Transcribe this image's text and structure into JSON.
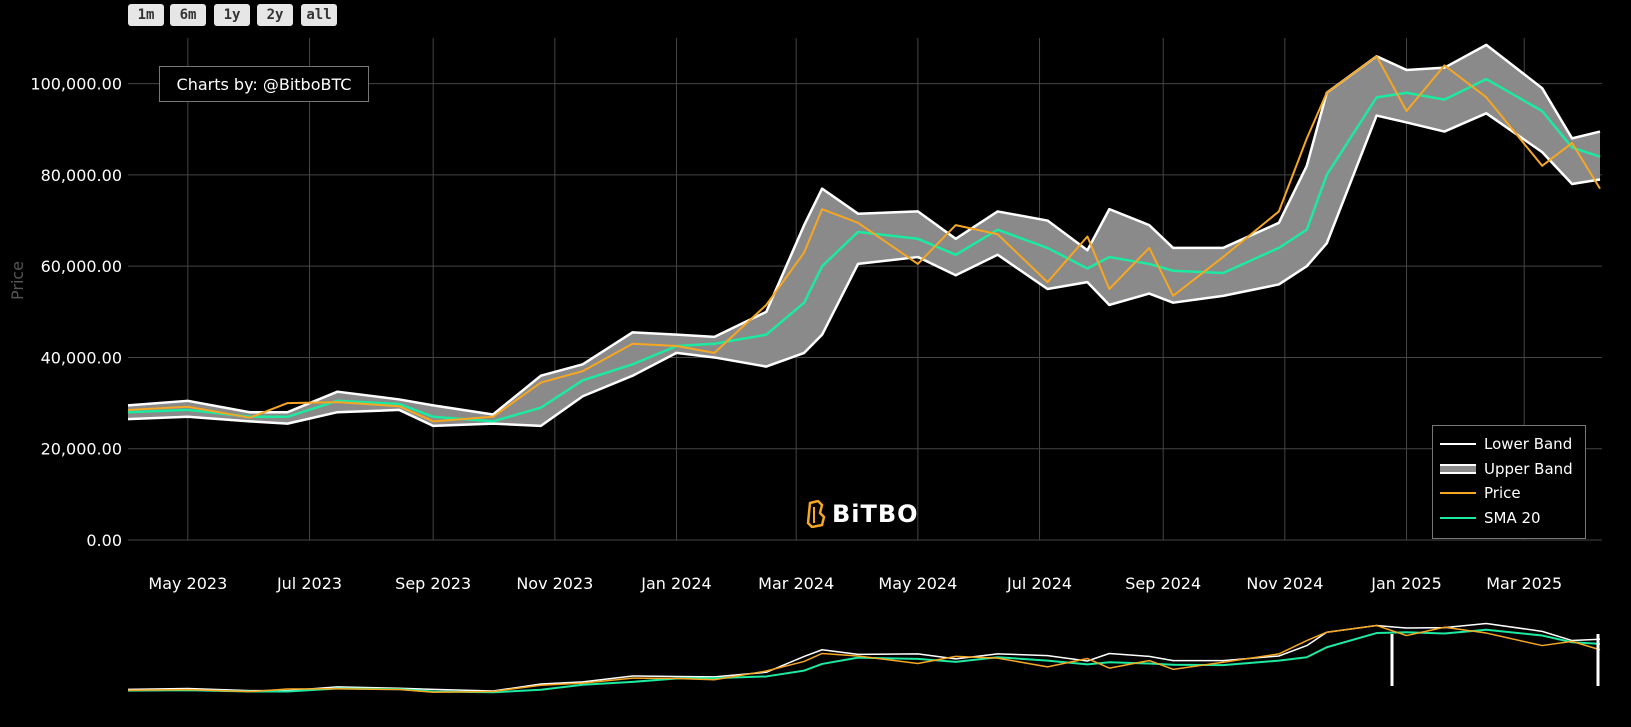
{
  "range_buttons": [
    "1m",
    "6m",
    "1y",
    "2y",
    "all"
  ],
  "credit": "Charts by: @BitboBTC",
  "watermark": "BiTBO",
  "colors": {
    "background": "#000000",
    "band_fill": "#8a8a8a",
    "band_line": "#ffffff",
    "price": "#f5a623",
    "sma": "#1de9a0",
    "grid": "#444444"
  },
  "legend": [
    {
      "label": "Lower Band",
      "color": "#ffffff",
      "style": "line"
    },
    {
      "label": "Upper Band",
      "color": "#8a8a8a",
      "style": "fill"
    },
    {
      "label": "Price",
      "color": "#f5a623",
      "style": "line"
    },
    {
      "label": "SMA 20",
      "color": "#1de9a0",
      "style": "line"
    }
  ],
  "chart_data": {
    "type": "line",
    "ylabel": "Price",
    "ylim": [
      0,
      110000
    ],
    "xlim": [
      "2023-04-01",
      "2025-04-09"
    ],
    "y_ticks": [
      "0.00",
      "20,000.00",
      "40,000.00",
      "60,000.00",
      "80,000.00",
      "100,000.00"
    ],
    "x_ticks": [
      "May 2023",
      "Jul 2023",
      "Sep 2023",
      "Nov 2023",
      "Jan 2024",
      "Mar 2024",
      "May 2024",
      "Jul 2024",
      "Sep 2024",
      "Nov 2024",
      "Jan 2025",
      "Mar 2025"
    ],
    "grid": true,
    "legend_position": "bottom-right",
    "series": [
      {
        "name": "Price",
        "x": [
          "2023-04-01",
          "2023-05-01",
          "2023-06-01",
          "2023-06-20",
          "2023-07-15",
          "2023-08-15",
          "2023-09-01",
          "2023-10-01",
          "2023-10-25",
          "2023-11-15",
          "2023-12-10",
          "2024-01-01",
          "2024-01-20",
          "2024-02-15",
          "2024-03-05",
          "2024-03-14",
          "2024-04-01",
          "2024-05-01",
          "2024-05-20",
          "2024-06-10",
          "2024-07-05",
          "2024-07-25",
          "2024-08-05",
          "2024-08-25",
          "2024-09-06",
          "2024-10-01",
          "2024-10-29",
          "2024-11-12",
          "2024-11-22",
          "2024-12-17",
          "2025-01-01",
          "2025-01-20",
          "2025-02-10",
          "2025-03-10",
          "2025-03-25",
          "2025-04-08"
        ],
        "values": [
          28500,
          29200,
          26800,
          30000,
          30200,
          29300,
          26000,
          27000,
          34500,
          37000,
          43000,
          42500,
          41000,
          51500,
          63000,
          72500,
          69500,
          60500,
          69000,
          67000,
          56500,
          66500,
          55000,
          64000,
          53500,
          62000,
          72000,
          88000,
          98000,
          106000,
          94000,
          104000,
          97000,
          82000,
          87000,
          77000
        ]
      },
      {
        "name": "SMA 20",
        "x": [
          "2023-04-01",
          "2023-05-01",
          "2023-06-01",
          "2023-06-20",
          "2023-07-15",
          "2023-08-15",
          "2023-09-01",
          "2023-10-01",
          "2023-10-25",
          "2023-11-15",
          "2023-12-10",
          "2024-01-01",
          "2024-01-20",
          "2024-02-15",
          "2024-03-05",
          "2024-03-14",
          "2024-04-01",
          "2024-05-01",
          "2024-05-20",
          "2024-06-10",
          "2024-07-05",
          "2024-07-25",
          "2024-08-05",
          "2024-08-25",
          "2024-09-06",
          "2024-10-01",
          "2024-10-29",
          "2024-11-12",
          "2024-11-22",
          "2024-12-17",
          "2025-01-01",
          "2025-01-20",
          "2025-02-10",
          "2025-03-10",
          "2025-03-25",
          "2025-04-08"
        ],
        "values": [
          28000,
          28500,
          27000,
          27000,
          30500,
          29800,
          27000,
          26000,
          29000,
          35000,
          38500,
          42500,
          43000,
          45000,
          52000,
          60000,
          67500,
          66000,
          62500,
          68000,
          64000,
          59500,
          62000,
          60500,
          59000,
          58500,
          64000,
          68000,
          80000,
          97000,
          98000,
          96500,
          101000,
          94000,
          86000,
          84000
        ]
      },
      {
        "name": "Upper Band",
        "x": [
          "2023-04-01",
          "2023-05-01",
          "2023-06-01",
          "2023-06-20",
          "2023-07-15",
          "2023-08-15",
          "2023-09-01",
          "2023-10-01",
          "2023-10-25",
          "2023-11-15",
          "2023-12-10",
          "2024-01-01",
          "2024-01-20",
          "2024-02-15",
          "2024-03-05",
          "2024-03-14",
          "2024-04-01",
          "2024-05-01",
          "2024-05-20",
          "2024-06-10",
          "2024-07-05",
          "2024-07-25",
          "2024-08-05",
          "2024-08-25",
          "2024-09-06",
          "2024-10-01",
          "2024-10-29",
          "2024-11-12",
          "2024-11-22",
          "2024-12-17",
          "2025-01-01",
          "2025-01-20",
          "2025-02-10",
          "2025-03-10",
          "2025-03-25",
          "2025-04-08"
        ],
        "values": [
          29500,
          30500,
          28000,
          28000,
          32500,
          30800,
          29500,
          27500,
          36000,
          38500,
          45500,
          45000,
          44500,
          50000,
          69000,
          77000,
          71500,
          72000,
          66000,
          72000,
          70000,
          63500,
          72500,
          69000,
          64000,
          64000,
          69500,
          82000,
          98000,
          106000,
          103000,
          103500,
          108500,
          99000,
          88000,
          89500
        ]
      },
      {
        "name": "Lower Band",
        "x": [
          "2023-04-01",
          "2023-05-01",
          "2023-06-01",
          "2023-06-20",
          "2023-07-15",
          "2023-08-15",
          "2023-09-01",
          "2023-10-01",
          "2023-10-25",
          "2023-11-15",
          "2023-12-10",
          "2024-01-01",
          "2024-01-20",
          "2024-02-15",
          "2024-03-05",
          "2024-03-14",
          "2024-04-01",
          "2024-05-01",
          "2024-05-20",
          "2024-06-10",
          "2024-07-05",
          "2024-07-25",
          "2024-08-05",
          "2024-08-25",
          "2024-09-06",
          "2024-10-01",
          "2024-10-29",
          "2024-11-12",
          "2024-11-22",
          "2024-12-17",
          "2025-01-01",
          "2025-01-20",
          "2025-02-10",
          "2025-03-10",
          "2025-03-25",
          "2025-04-08"
        ],
        "values": [
          26500,
          27000,
          26000,
          25500,
          28000,
          28500,
          25000,
          25500,
          25000,
          31500,
          36000,
          41000,
          40000,
          38000,
          41000,
          45000,
          60500,
          62000,
          58000,
          62500,
          55000,
          56500,
          51500,
          54000,
          52000,
          53500,
          56000,
          60000,
          65000,
          93000,
          91500,
          89500,
          93500,
          85000,
          78000,
          79000
        ]
      }
    ]
  }
}
